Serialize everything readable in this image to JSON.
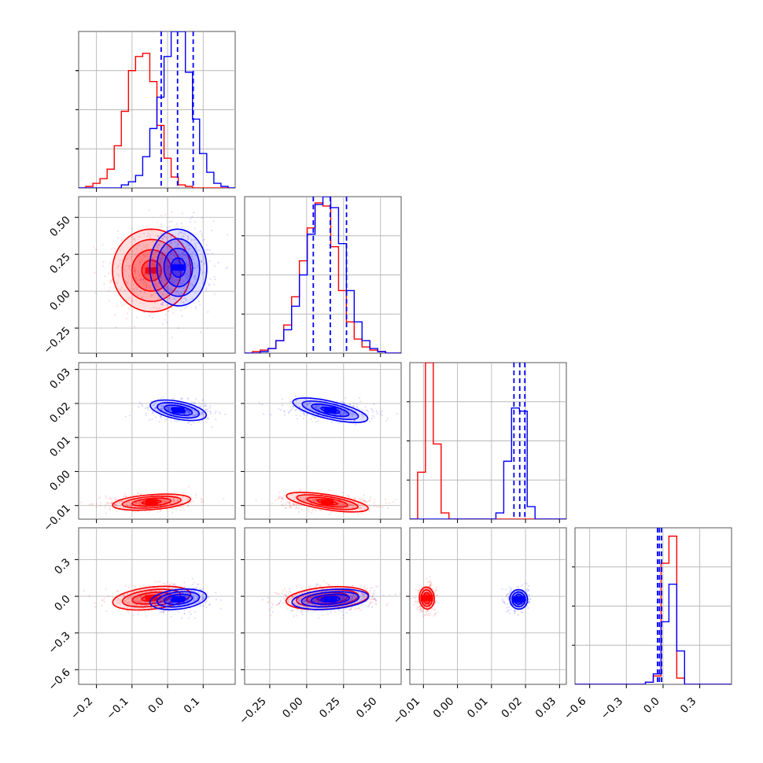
{
  "colors": {
    "red": "#ff0000",
    "blue": "#0000ff",
    "frame": "#555555",
    "grid": "#b8b8b8"
  },
  "chart_data": {
    "type": "corner",
    "description_of_series": [
      "red",
      "blue"
    ],
    "parameters": [
      {
        "range": [
          -0.25,
          0.19
        ],
        "ticks": [
          -0.2,
          -0.1,
          0.0,
          0.1
        ],
        "tick_labels": [
          "−0.2",
          "−0.1",
          "0.0",
          "0.1"
        ]
      },
      {
        "range": [
          -0.42,
          0.64
        ],
        "ticks": [
          -0.25,
          0.0,
          0.25,
          0.5
        ],
        "tick_labels": [
          "−0.25",
          "0.00",
          "0.25",
          "0.50"
        ]
      },
      {
        "range": [
          -0.014,
          0.032
        ],
        "ticks": [
          -0.01,
          0.0,
          0.01,
          0.02,
          0.03
        ],
        "tick_labels": [
          "−0.01",
          "0.00",
          "0.01",
          "0.02",
          "0.03"
        ]
      },
      {
        "range": [
          -0.72,
          0.56
        ],
        "ticks": [
          -0.6,
          -0.3,
          0.0,
          0.3
        ],
        "tick_labels": [
          "−0.6",
          "−0.3",
          "0.0",
          "0.3"
        ]
      }
    ],
    "histograms": [
      {
        "blue": {
          "edges": [
            -0.25,
            0.19
          ],
          "counts": [
            0,
            0,
            0,
            0,
            0,
            0,
            0.02,
            0.04,
            0.08,
            0.2,
            0.38,
            0.58,
            0.84,
            1.0,
            1.0,
            0.74,
            0.44,
            0.22,
            0.1,
            0.03,
            0.01,
            0
          ],
          "quantiles": [
            -0.018,
            0.028,
            0.072
          ]
        },
        "red": {
          "edges": [
            -0.25,
            0.19
          ],
          "counts": [
            0,
            0.01,
            0.03,
            0.06,
            0.12,
            0.27,
            0.49,
            0.75,
            0.84,
            0.86,
            0.68,
            0.4,
            0.19,
            0.07,
            0.02,
            0.01,
            0,
            0,
            0,
            0,
            0,
            0
          ]
        }
      },
      {
        "blue": {
          "edges": [
            -0.42,
            0.64
          ],
          "counts": [
            0,
            0,
            0.01,
            0.03,
            0.08,
            0.15,
            0.3,
            0.5,
            0.76,
            0.95,
            1.0,
            0.93,
            0.7,
            0.4,
            0.2,
            0.08,
            0.03,
            0.01,
            0,
            0
          ],
          "quantiles": [
            0.045,
            0.16,
            0.27
          ]
        },
        "red": {
          "edges": [
            -0.42,
            0.64
          ],
          "counts": [
            0,
            0.01,
            0.02,
            0.03,
            0.08,
            0.18,
            0.36,
            0.59,
            0.8,
            0.96,
            0.94,
            0.68,
            0.4,
            0.2,
            0.09,
            0.04,
            0.02,
            0.01,
            0,
            0
          ],
          "quantiles": []
        }
      },
      {
        "blue": {
          "edges": [
            -0.014,
            0.032
          ],
          "counts": [
            0,
            0,
            0,
            0,
            0,
            0,
            0,
            0,
            0,
            0,
            0,
            0.04,
            0.37,
            0.71,
            0.69,
            0.08,
            0,
            0,
            0,
            0
          ],
          "quantiles": [
            0.0166,
            0.0183,
            0.0198
          ]
        },
        "red": {
          "edges": [
            -0.014,
            0.032
          ],
          "counts": [
            0,
            0.3,
            1.0,
            0.48,
            0.04,
            0,
            0,
            0,
            0,
            0,
            0,
            0,
            0,
            0,
            0,
            0,
            0,
            0,
            0,
            0
          ],
          "quantiles": []
        }
      },
      {
        "blue": {
          "edges": [
            -0.72,
            0.56
          ],
          "counts": [
            0,
            0,
            0,
            0,
            0,
            0,
            0,
            0,
            0,
            0.01,
            0.05,
            0.3,
            0.48,
            0.16,
            0,
            0,
            0,
            0,
            0,
            0
          ],
          "quantiles": [
            -0.045,
            -0.03,
            -0.012
          ]
        },
        "red": {
          "edges": [
            -0.72,
            0.56
          ],
          "counts": [
            0,
            0,
            0,
            0,
            0,
            0,
            0,
            0,
            0,
            0.01,
            0.04,
            0.58,
            0.71,
            0.03,
            0,
            0,
            0,
            0,
            0,
            0
          ],
          "quantiles": []
        }
      }
    ],
    "hist_ylim": [
      [
        0,
        1.0
      ],
      [
        0,
        1.0
      ],
      [
        0,
        1.0
      ],
      [
        0,
        0.75
      ]
    ],
    "posterior_means": {
      "red": [
        -0.045,
        0.14,
        -0.009,
        -0.015
      ],
      "blue": [
        0.03,
        0.16,
        0.018,
        -0.025
      ]
    },
    "posterior_sds": {
      "red": [
        0.055,
        0.14,
        0.0011,
        0.045
      ],
      "blue": [
        0.04,
        0.13,
        0.0013,
        0.04
      ]
    }
  }
}
